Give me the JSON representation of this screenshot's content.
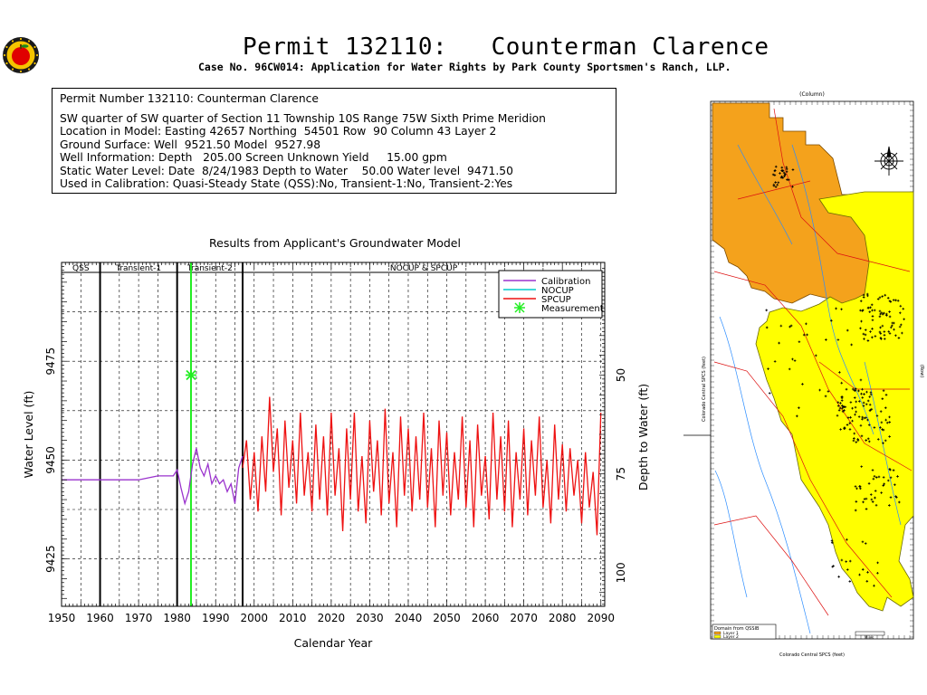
{
  "header": {
    "title": "Permit 132110:   Counterman Clarence",
    "subtitle": "Case No. 96CW014: Application for Water Rights by Park County Sportsmen's Ranch, LLP."
  },
  "info": {
    "line1": "Permit Number 132110: Counterman Clarence",
    "line2": "SW quarter of SW quarter of Section 11 Township 10S Range 75W Sixth Prime Meridion",
    "line3": "Location in Model: Easting 42657 Northing  54501 Row  90 Column 43 Layer 2",
    "line4": "Ground Surface: Well  9521.50 Model  9527.98",
    "line5": "Well Information: Depth   205.00 Screen Unknown Yield     15.00 gpm",
    "line6": "Static Water Level: Date  8/24/1983 Depth to Water    50.00 Water level  9471.50",
    "line7": "Used in Calibration: Quasi-Steady State (QSS):No, Transient-1:No, Transient-2:Yes"
  },
  "colors": {
    "calibration": "#9a32cd",
    "nocup": "#00cccc",
    "spcup": "#ee1111",
    "measurement": "#22ee22",
    "map_orange": "#f4a21c",
    "map_yellow": "#ffff00"
  },
  "chart_data": {
    "type": "line",
    "title": "Results from Applicant's Groundwater Model",
    "xlabel": "Calendar Year",
    "ylabel": "Water Level (ft)",
    "y2label": "Depth to Water (ft)",
    "xlim": [
      1950,
      2091
    ],
    "ylim": [
      9413,
      9500
    ],
    "x_ticks": [
      1950,
      1960,
      1970,
      1980,
      1990,
      2000,
      2010,
      2020,
      2030,
      2040,
      2050,
      2060,
      2070,
      2080,
      2090
    ],
    "y_ticks": [
      9425,
      9450,
      9475
    ],
    "y2_ticks": [
      50,
      75,
      100
    ],
    "periods": [
      {
        "label": "QSS",
        "start": 1950,
        "end": 1960
      },
      {
        "label": "Transient-1",
        "start": 1960,
        "end": 1980
      },
      {
        "label": "Transient-2",
        "start": 1980,
        "end": 1997
      },
      {
        "label": "NOCUP  &  SPCUP",
        "start": 1997,
        "end": 2091
      }
    ],
    "grid": true,
    "legend_position": "top-right",
    "series": [
      {
        "name": "Calibration",
        "x": [
          1950,
          1960,
          1970,
          1975,
          1979,
          1980,
          1981,
          1982,
          1983,
          1984,
          1985,
          1986,
          1987,
          1988,
          1989,
          1990,
          1991,
          1992,
          1993,
          1994,
          1995,
          1996,
          1997
        ],
        "y": [
          9445,
          9445,
          9445,
          9446,
          9446,
          9447.5,
          9443,
          9439,
          9442,
          9449,
          9453,
          9448,
          9446,
          9449,
          9444,
          9446,
          9444,
          9445,
          9442,
          9444,
          9439,
          9448,
          9451
        ]
      },
      {
        "name": "NOCUP",
        "x": [],
        "y": []
      },
      {
        "name": "SPCUP",
        "x": [
          1997,
          1998,
          1999,
          2000,
          2001,
          2002,
          2003,
          2004,
          2005,
          2006,
          2007,
          2008,
          2009,
          2010,
          2011,
          2012,
          2013,
          2014,
          2015,
          2016,
          2017,
          2018,
          2019,
          2020,
          2021,
          2022,
          2023,
          2024,
          2025,
          2026,
          2027,
          2028,
          2029,
          2030,
          2031,
          2032,
          2033,
          2034,
          2035,
          2036,
          2037,
          2038,
          2039,
          2040,
          2041,
          2042,
          2043,
          2044,
          2045,
          2046,
          2047,
          2048,
          2049,
          2050,
          2051,
          2052,
          2053,
          2054,
          2055,
          2056,
          2057,
          2058,
          2059,
          2060,
          2061,
          2062,
          2063,
          2064,
          2065,
          2066,
          2067,
          2068,
          2069,
          2070,
          2071,
          2072,
          2073,
          2074,
          2075,
          2076,
          2077,
          2078,
          2079,
          2080,
          2081,
          2082,
          2083,
          2084,
          2085,
          2086,
          2087,
          2088,
          2089,
          2090
        ],
        "y": [
          9448,
          9455,
          9440,
          9452,
          9437,
          9456,
          9442,
          9466,
          9447,
          9458,
          9436,
          9460,
          9443,
          9455,
          9439,
          9462,
          9441,
          9452,
          9437,
          9459,
          9440,
          9456,
          9436,
          9462,
          9441,
          9453,
          9432,
          9458,
          9440,
          9462,
          9437,
          9451,
          9434,
          9460,
          9442,
          9455,
          9436,
          9463,
          9439,
          9452,
          9433,
          9461,
          9441,
          9458,
          9437,
          9456,
          9440,
          9462,
          9438,
          9453,
          9433,
          9460,
          9441,
          9457,
          9436,
          9452,
          9440,
          9461,
          9438,
          9455,
          9433,
          9459,
          9441,
          9451,
          9435,
          9462,
          9440,
          9456,
          9437,
          9460,
          9433,
          9452,
          9440,
          9458,
          9436,
          9455,
          9441,
          9461,
          9438,
          9450,
          9434,
          9459,
          9440,
          9454,
          9437,
          9453,
          9441,
          9450,
          9434,
          9452,
          9438,
          9447,
          9431,
          9462
        ]
      },
      {
        "name": "Measurement",
        "x": [
          1983.6
        ],
        "y": [
          9471.5
        ]
      }
    ]
  },
  "map": {
    "top_label": "(Column)",
    "left_label": "Colorado Central SPCS (feet)",
    "right_label": "(Row)",
    "bottom_label": "Colorado Central SPCS (feet)",
    "legend_title": "Domain from QSSIB",
    "legend_layer1": "Layer 1",
    "legend_layer2": "Layer 2",
    "scale_label": "Miles"
  }
}
